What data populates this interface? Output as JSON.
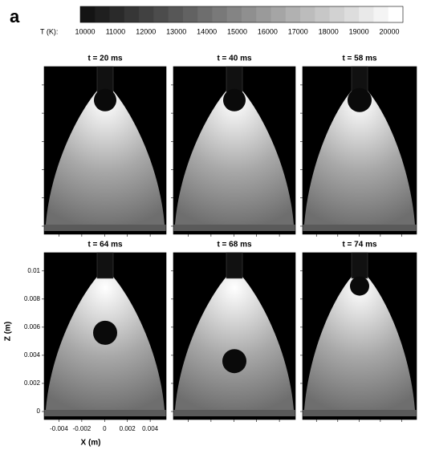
{
  "panel_label": "a",
  "colorbar": {
    "label": "T (K):",
    "ticks": [
      10000,
      11000,
      12000,
      13000,
      14000,
      15000,
      16000,
      17000,
      18000,
      19000,
      20000
    ]
  },
  "panels": [
    {
      "title": "t = 20 ms"
    },
    {
      "title": "t = 40 ms"
    },
    {
      "title": "t = 58 ms"
    },
    {
      "title": "t = 64 ms"
    },
    {
      "title": "t = 68 ms"
    },
    {
      "title": "t = 74 ms"
    }
  ],
  "xaxis": {
    "label": "X (m)",
    "lim": [
      -0.0053,
      0.0054
    ],
    "ticks": [
      -0.004,
      -0.002,
      0,
      0.002,
      0.004
    ]
  },
  "yaxis": {
    "label": "Z (m)",
    "lim": [
      -0.00057,
      0.0113
    ],
    "ticks": [
      0,
      0.002,
      0.004,
      0.006,
      0.008,
      0.01
    ]
  }
}
